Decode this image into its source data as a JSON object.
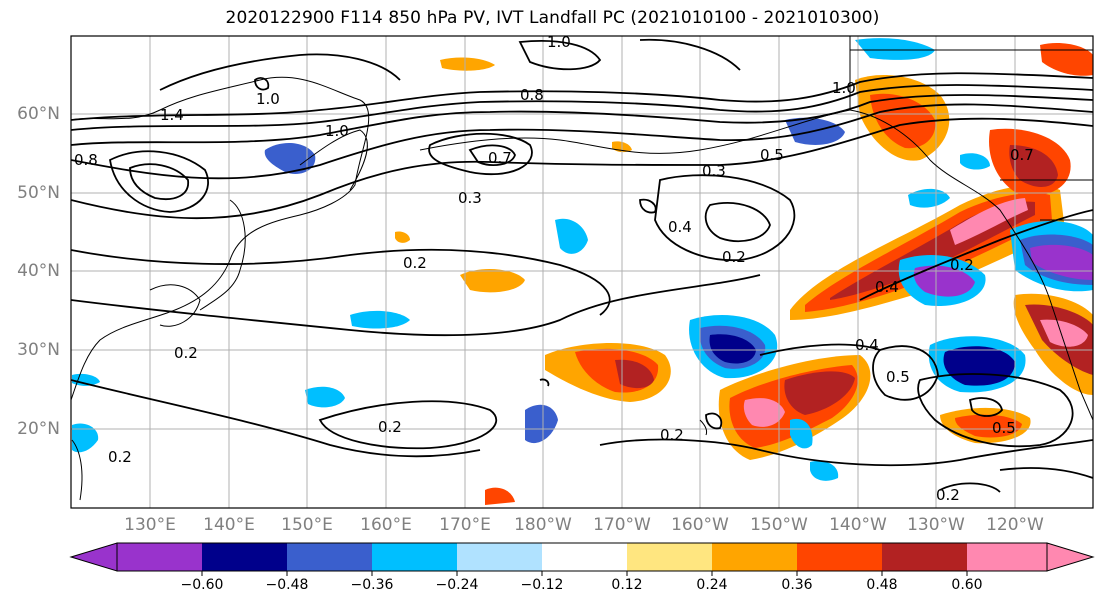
{
  "title": "2020122900 F114 850 hPa PV, IVT Landfall PC (2021010100 - 2021010300)",
  "map": {
    "lat_labels": [
      "60°N",
      "50°N",
      "40°N",
      "30°N",
      "20°N"
    ],
    "lon_labels": [
      "130°E",
      "140°E",
      "150°E",
      "160°E",
      "170°E",
      "180°W",
      "170°W",
      "160°W",
      "150°W",
      "140°W",
      "130°W",
      "120°W"
    ],
    "contour_labels": [
      "1.0",
      "1.0",
      "0.8",
      "1.4",
      "1.0",
      "0.7",
      "1.0",
      "0.5",
      "0.3",
      "0.3",
      "0.4",
      "0.2",
      "0.2",
      "0.4",
      "0.2",
      "0.2",
      "0.2",
      "0.2",
      "0.4",
      "0.5",
      "0.5",
      "0.2",
      "0.2",
      "0.7",
      "0.8"
    ],
    "land_color": "#000000",
    "grid_color": "#b0b0b0"
  },
  "colorbar": {
    "colors": [
      "#9933cc",
      "#00008b",
      "#3a5fcd",
      "#00bfff",
      "#b0e2ff",
      "#ffffff",
      "#ffe680",
      "#ffa500",
      "#ff4500",
      "#b22222",
      "#ff88b0"
    ],
    "tick_labels": [
      "−0.60",
      "−0.48",
      "−0.36",
      "−0.24",
      "−0.12",
      "0.12",
      "0.24",
      "0.36",
      "0.48",
      "0.60"
    ],
    "levels": [
      -0.6,
      -0.48,
      -0.36,
      -0.24,
      -0.12,
      0.12,
      0.24,
      0.36,
      0.48,
      0.6
    ]
  }
}
